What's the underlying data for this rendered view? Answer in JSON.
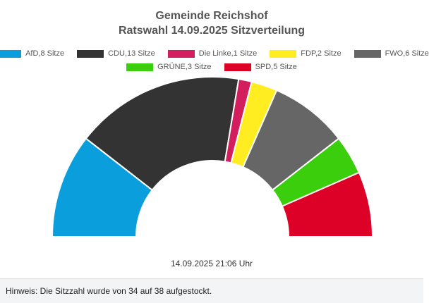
{
  "chart_data": {
    "type": "pie",
    "subtype": "parliament-semicircle",
    "title": "Gemeinde Reichshof",
    "subtitle": "Ratswahl 14.09.2025 Sitzverteilung",
    "legend_position": "top-center",
    "total_seats": 38,
    "series": [
      {
        "name": "AfD,8 Sitze",
        "party": "AfD",
        "value": 8,
        "color": "#0a9fdc"
      },
      {
        "name": "CDU,13 Sitze",
        "party": "CDU",
        "value": 13,
        "color": "#333333"
      },
      {
        "name": "Die Linke,1 Sitze",
        "party": "Die Linke",
        "value": 1,
        "color": "#d21e5c"
      },
      {
        "name": "FDP,2 Sitze",
        "party": "FDP",
        "value": 2,
        "color": "#ffed22"
      },
      {
        "name": "FWO,6 Sitze",
        "party": "FWO",
        "value": 6,
        "color": "#666666"
      },
      {
        "name": "GRÜNE,3 Sitze",
        "party": "GRÜNE",
        "value": 3,
        "color": "#3ace0c"
      },
      {
        "name": "SPD,5 Sitze",
        "party": "SPD",
        "value": 5,
        "color": "#dd0027"
      }
    ]
  },
  "timestamp": "14.09.2025 21:06 Uhr",
  "footer": {
    "note": "Hinweis: Die Sitzzahl wurde von 34 auf 38 aufgestockt."
  }
}
